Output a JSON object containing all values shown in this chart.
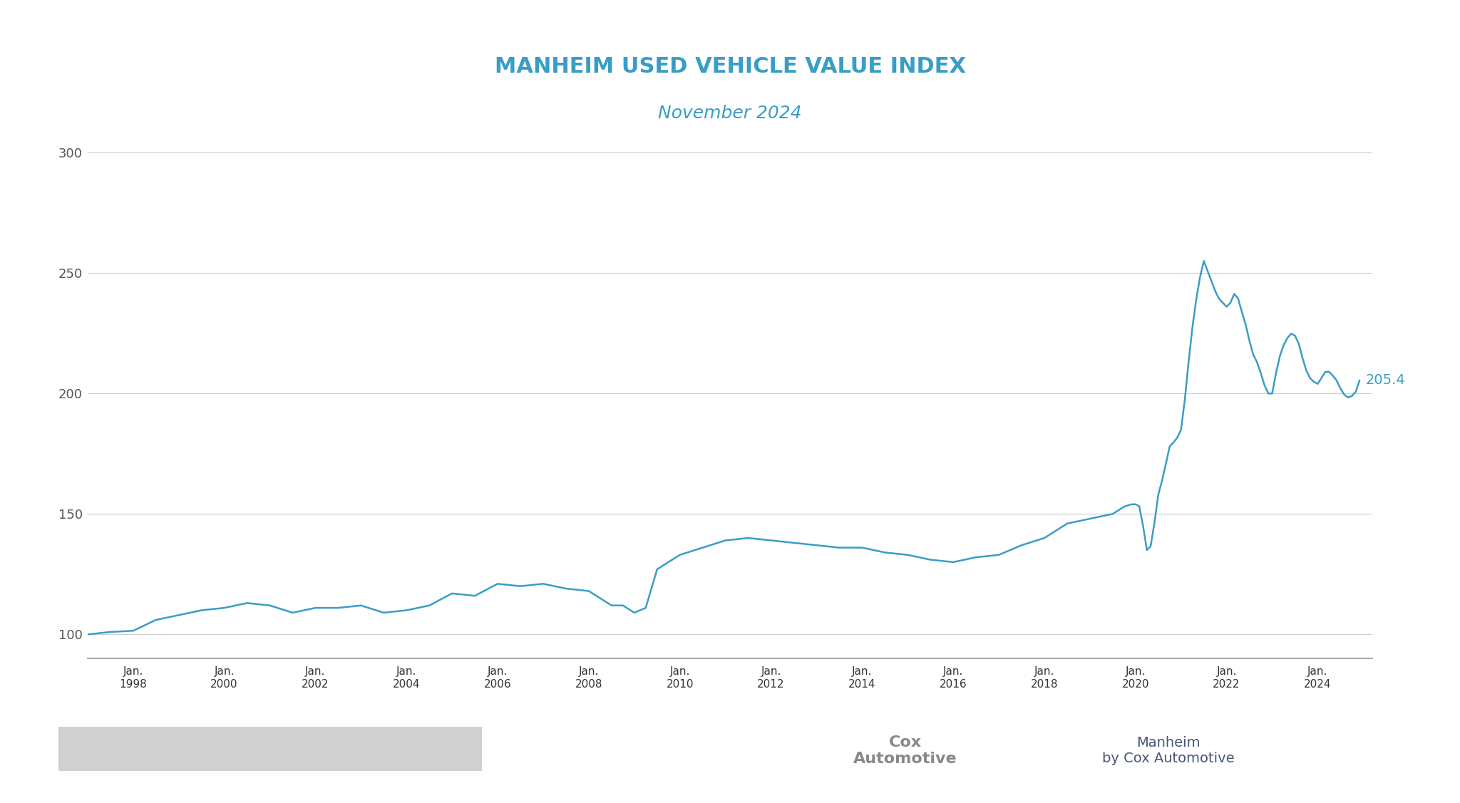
{
  "title": "MANHEIM USED VEHICLE VALUE INDEX",
  "subtitle": "November 2024",
  "title_color": "#3a9dc5",
  "subtitle_color": "#3a9dc5",
  "line_color": "#3a9dc5",
  "line_width": 1.8,
  "ylabel_values": [
    100,
    150,
    200,
    250,
    300
  ],
  "yticks": [
    100,
    150,
    200,
    250,
    300
  ],
  "ylim": [
    90,
    310
  ],
  "xtick_labels": [
    "Jan.\n1998",
    "Jan.\n2000",
    "Jan.\n2002",
    "Jan.\n2004",
    "Jan.\n2006",
    "Jan.\n2008",
    "Jan.\n2010",
    "Jan.\n2012",
    "Jan.\n2014",
    "Jan.\n2016",
    "Jan.\n2018",
    "Jan.\n2020",
    "Jan.\n2022",
    "Jan.\n2024"
  ],
  "last_value": "205.4",
  "last_value_color": "#3a9dc5",
  "background_color": "#ffffff",
  "grid_color": "#cccccc",
  "footer_bar_color": "#d0d0d0",
  "annotation_fontsize": 14
}
